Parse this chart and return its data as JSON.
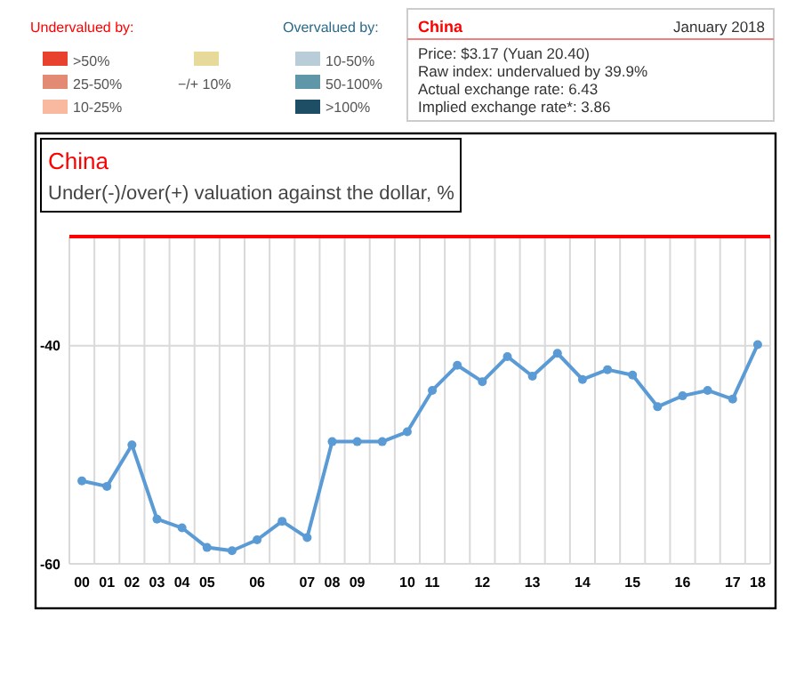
{
  "chart_data": {
    "type": "line",
    "title": "China",
    "subtitle": "Under(-)/over(+) valuation against the dollar, %",
    "categories": [
      "00",
      "01",
      "02",
      "03",
      "04",
      "05",
      null,
      "06",
      null,
      "07",
      "08",
      "09",
      null,
      "10",
      "11",
      null,
      "12",
      null,
      "13",
      null,
      "14",
      null,
      "15",
      null,
      "16",
      null,
      "17",
      "18"
    ],
    "series": [
      {
        "color": "#5b9bd5",
        "values": [
          -52.4,
          -52.9,
          -49.1,
          -55.9,
          -56.7,
          -58.5,
          -58.8,
          -57.8,
          -56.1,
          -57.6,
          -48.8,
          -48.8,
          -48.8,
          -47.9,
          -44.1,
          -41.8,
          -43.3,
          -41.0,
          -42.8,
          -40.7,
          -43.1,
          -42.2,
          -42.7,
          -45.6,
          -44.6,
          -44.1,
          -44.9,
          -39.9
        ]
      }
    ],
    "ylim": [
      -60,
      -30
    ],
    "yticks": [
      -60,
      -40
    ],
    "grid": true,
    "marker": "circle",
    "line_style": "solid",
    "ref_lines": [
      {
        "axis": "y",
        "value": -30,
        "color": "#ff0000"
      }
    ],
    "annotations": [
      "Undervalued by:",
      ">50%",
      "25-50%",
      "10-25%",
      "−/+ 10%",
      "Overvalued by:",
      "10-50%",
      "50-100%",
      ">100%",
      "China",
      "January 2018",
      "Price: $3.17 (Yuan 20.40)",
      "Raw index: undervalued by 39.9%",
      "Actual exchange rate: 6.43",
      "Implied exchange rate*: 3.86"
    ]
  }
}
